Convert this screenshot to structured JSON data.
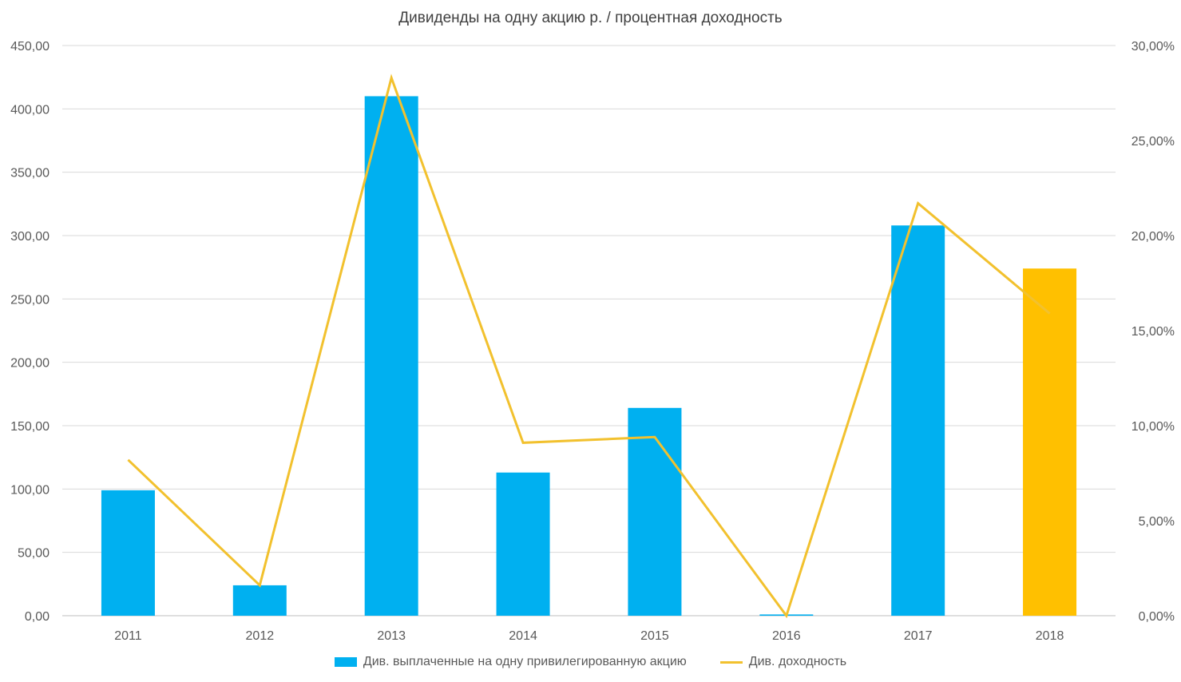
{
  "chart_data": {
    "type": "bar",
    "title": "Дивиденды на одну акцию р. / процентная доходность",
    "categories": [
      "2011",
      "2012",
      "2013",
      "2014",
      "2015",
      "2016",
      "2017",
      "2018"
    ],
    "series": [
      {
        "name": "Див. выплаченные на одну привилегированную акцию",
        "type": "bar",
        "axis": "left",
        "color": "#00B0F0",
        "highlight_color": "#FFC000",
        "highlight_index": 7,
        "values": [
          99,
          24,
          410,
          113,
          164,
          1,
          308,
          274
        ]
      },
      {
        "name": "Див. доходность",
        "type": "line",
        "axis": "right",
        "color": "#F2C12E",
        "values": [
          8.2,
          1.6,
          28.3,
          9.1,
          9.4,
          0.0,
          21.7,
          15.9
        ]
      }
    ],
    "y_left": {
      "min": 0,
      "max": 450,
      "step": 50,
      "tick_labels": [
        "0,00",
        "50,00",
        "100,00",
        "150,00",
        "200,00",
        "250,00",
        "300,00",
        "350,00",
        "400,00",
        "450,00"
      ]
    },
    "y_right": {
      "min": 0,
      "max": 30,
      "step": 5,
      "tick_labels": [
        "0,00%",
        "5,00%",
        "10,00%",
        "15,00%",
        "20,00%",
        "25,00%",
        "30,00%"
      ]
    },
    "grid": true,
    "legend_position": "bottom"
  }
}
